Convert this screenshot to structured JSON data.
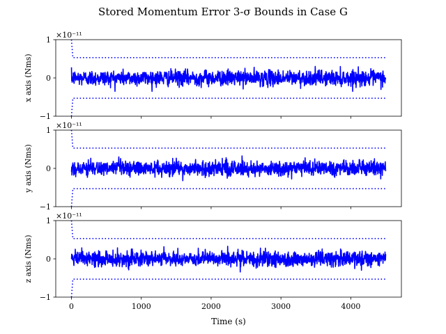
{
  "chart_data": {
    "type": "line",
    "title": "Stored Momentum Error 3-σ Bounds in Case G",
    "xlabel": "Time (s)",
    "xlim": [
      -225,
      4725
    ],
    "x_ticks": [
      0,
      1000,
      2000,
      3000,
      4000
    ],
    "x_tick_labels": [
      "0",
      "1000",
      "2000",
      "3000",
      "4000"
    ],
    "grid": false,
    "line_color": "#0000ff",
    "panels": [
      {
        "ylabel": "x axis (Nms)",
        "y_scale_label": "×10⁻¹¹",
        "ylim": [
          -1,
          1
        ],
        "y_ticks": [
          -1,
          0,
          1
        ],
        "y_tick_labels": [
          "−1",
          "0",
          "1"
        ],
        "error_series": {
          "x_start": 0,
          "x_end": 4500,
          "mean": 0.0,
          "amplitude": 0.1,
          "peak": 0.35
        },
        "bounds": {
          "upper": 0.53,
          "lower": -0.53,
          "initial_upper": 1.0,
          "initial_lower": -1.0,
          "settle_time": 20
        }
      },
      {
        "ylabel": "y axis (Nms)",
        "y_scale_label": "×10⁻¹¹",
        "ylim": [
          -1,
          1
        ],
        "y_ticks": [
          -1,
          0,
          1
        ],
        "y_tick_labels": [
          "−1",
          "0",
          "1"
        ],
        "error_series": {
          "x_start": 0,
          "x_end": 4500,
          "mean": 0.0,
          "amplitude": 0.1,
          "peak": 0.45
        },
        "bounds": {
          "upper": 0.53,
          "lower": -0.53,
          "initial_upper": 1.0,
          "initial_lower": -1.0,
          "settle_time": 20
        }
      },
      {
        "ylabel": "z axis (Nms)",
        "y_scale_label": "×10⁻¹¹",
        "ylim": [
          -1,
          1
        ],
        "y_ticks": [
          -1,
          0,
          1
        ],
        "y_tick_labels": [
          "−1",
          "0",
          "1"
        ],
        "error_series": {
          "x_start": 0,
          "x_end": 4500,
          "mean": 0.0,
          "amplitude": 0.1,
          "peak": 0.38
        },
        "bounds": {
          "upper": 0.53,
          "lower": -0.53,
          "initial_upper": 1.0,
          "initial_lower": -1.0,
          "settle_time": 20
        }
      }
    ]
  }
}
